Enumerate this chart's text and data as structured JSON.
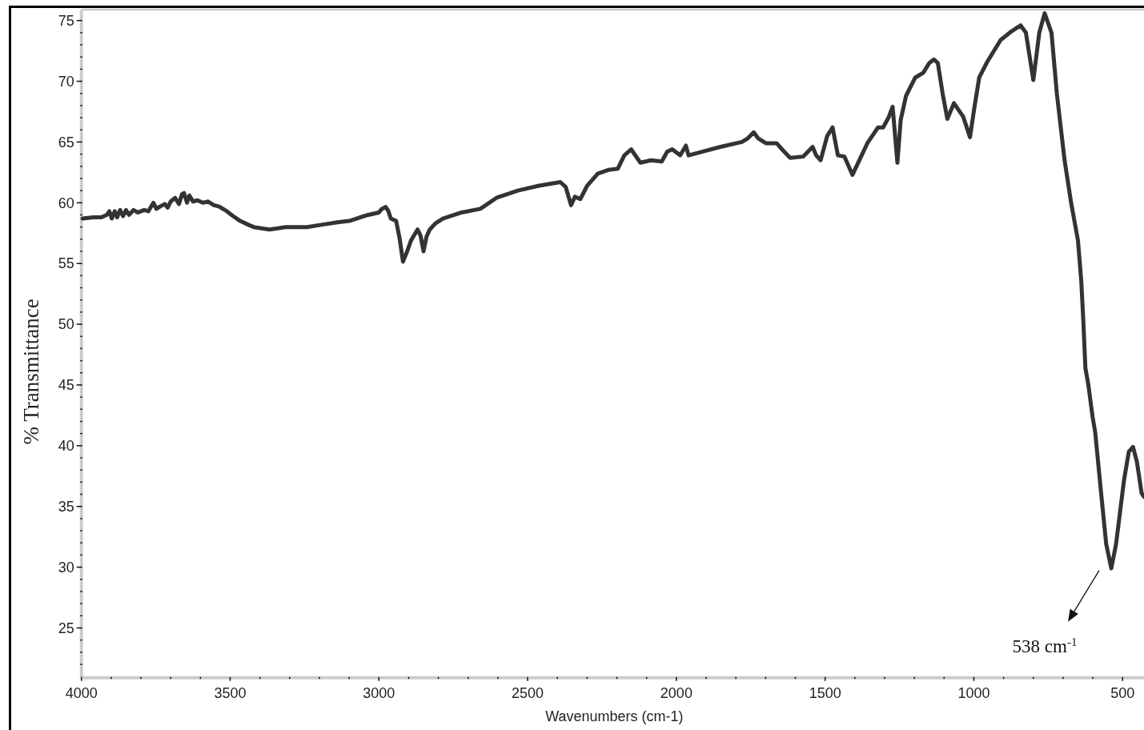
{
  "chart_data": {
    "type": "line",
    "xlabel": "Wavenumbers (cm-1)",
    "ylabel": "% Transmittance",
    "x": [
      3996,
      3960,
      3933,
      3915,
      3906,
      3898,
      3888,
      3880,
      3870,
      3860,
      3850,
      3840,
      3825,
      3810,
      3789,
      3775,
      3758,
      3748,
      3735,
      3720,
      3710,
      3700,
      3685,
      3672,
      3662,
      3655,
      3645,
      3637,
      3625,
      3610,
      3592,
      3574,
      3555,
      3538,
      3511,
      3490,
      3466,
      3440,
      3421,
      3395,
      3368,
      3340,
      3314,
      3280,
      3242,
      3190,
      3135,
      3100,
      3063,
      3036,
      3000,
      2990,
      2977,
      2968,
      2960,
      2942,
      2930,
      2919,
      2905,
      2892,
      2870,
      2860,
      2850,
      2840,
      2829,
      2810,
      2785,
      2722,
      2659,
      2605,
      2533,
      2462,
      2390,
      2372,
      2354,
      2341,
      2323,
      2300,
      2264,
      2229,
      2197,
      2175,
      2152,
      2121,
      2085,
      2049,
      2031,
      2014,
      1987,
      1968,
      1959,
      1914,
      1852,
      1780,
      1760,
      1740,
      1725,
      1699,
      1663,
      1645,
      1618,
      1574,
      1542,
      1530,
      1515,
      1493,
      1475,
      1457,
      1435,
      1408,
      1381,
      1358,
      1322,
      1305,
      1287,
      1273,
      1257,
      1246,
      1228,
      1197,
      1170,
      1150,
      1134,
      1121,
      1105,
      1089,
      1067,
      1036,
      1013,
      999,
      982,
      955,
      910,
      874,
      843,
      825,
      800,
      780,
      762,
      739,
      721,
      695,
      673,
      650,
      639,
      632,
      625,
      615,
      601,
      592,
      571,
      555,
      538,
      522,
      495,
      479,
      465,
      452,
      436,
      428
    ],
    "series": [
      {
        "color": "#333333",
        "values": [
          58.7,
          58.8,
          58.8,
          59.0,
          59.3,
          58.7,
          59.3,
          58.8,
          59.4,
          58.9,
          59.4,
          59.0,
          59.4,
          59.2,
          59.4,
          59.3,
          60.0,
          59.5,
          59.7,
          59.9,
          59.6,
          60.1,
          60.4,
          59.9,
          60.7,
          60.8,
          60.0,
          60.6,
          60.1,
          60.2,
          60.0,
          60.1,
          59.8,
          59.7,
          59.3,
          58.9,
          58.5,
          58.2,
          58.0,
          57.9,
          57.8,
          57.9,
          58.0,
          58.0,
          58.0,
          58.2,
          58.4,
          58.5,
          58.8,
          59.0,
          59.2,
          59.5,
          59.65,
          59.3,
          58.7,
          58.5,
          57.0,
          55.15,
          56.0,
          56.9,
          57.8,
          57.3,
          56.0,
          57.2,
          57.8,
          58.3,
          58.7,
          59.2,
          59.5,
          60.4,
          61.0,
          61.4,
          61.7,
          61.3,
          59.8,
          60.5,
          60.3,
          61.4,
          62.4,
          62.7,
          62.8,
          63.9,
          64.4,
          63.3,
          63.5,
          63.4,
          64.2,
          64.4,
          63.9,
          64.7,
          63.9,
          64.2,
          64.6,
          65.0,
          65.3,
          65.8,
          65.3,
          64.9,
          64.9,
          64.4,
          63.7,
          63.8,
          64.6,
          63.9,
          63.5,
          65.5,
          66.2,
          63.9,
          63.8,
          62.3,
          63.7,
          64.9,
          66.2,
          66.2,
          67.0,
          67.9,
          63.3,
          66.8,
          68.8,
          70.3,
          70.7,
          71.5,
          71.8,
          71.5,
          69.0,
          66.9,
          68.2,
          67.1,
          65.4,
          67.7,
          70.3,
          71.6,
          73.4,
          74.1,
          74.6,
          74.0,
          70.1,
          74.0,
          75.6,
          74.0,
          69.0,
          63.5,
          60.0,
          56.9,
          53.6,
          50.3,
          46.4,
          45.0,
          42.4,
          41.1,
          35.8,
          31.9,
          29.9,
          31.9,
          37.2,
          39.5,
          39.9,
          38.7,
          36.1,
          35.8
        ]
      }
    ],
    "xlim": [
      4000,
      428
    ],
    "ylim": [
      20.9,
      75.9
    ],
    "xticks": [
      4000,
      {
        "value": 3900,
        "label": null
      },
      {
        "value": 3800,
        "label": null
      },
      {
        "value": 3700,
        "label": null
      },
      {
        "value": 3600,
        "label": null
      },
      3500,
      {
        "value": 3400,
        "label": null
      },
      {
        "value": 3300,
        "label": null
      },
      {
        "value": 3200,
        "label": null
      },
      {
        "value": 3100,
        "label": null
      },
      3000,
      {
        "value": 2900,
        "label": null
      },
      {
        "value": 2800,
        "label": null
      },
      {
        "value": 2700,
        "label": null
      },
      {
        "value": 2600,
        "label": null
      },
      2500,
      {
        "value": 2400,
        "label": null
      },
      {
        "value": 2300,
        "label": null
      },
      {
        "value": 2200,
        "label": null
      },
      {
        "value": 2100,
        "label": null
      },
      2000,
      {
        "value": 1900,
        "label": null
      },
      {
        "value": 1800,
        "label": null
      },
      {
        "value": 1700,
        "label": null
      },
      {
        "value": 1600,
        "label": null
      },
      1500,
      {
        "value": 1400,
        "label": null
      },
      {
        "value": 1300,
        "label": null
      },
      {
        "value": 1200,
        "label": null
      },
      {
        "value": 1100,
        "label": null
      },
      1000,
      {
        "value": 900,
        "label": null
      },
      {
        "value": 800,
        "label": null
      },
      {
        "value": 700,
        "label": null
      },
      {
        "value": 600,
        "label": null
      },
      500
    ],
    "yticks": [
      {
        "value": 22,
        "label": null
      },
      {
        "value": 23,
        "label": null
      },
      {
        "value": 24,
        "label": null
      },
      25,
      {
        "value": 26,
        "label": null
      },
      {
        "value": 27,
        "label": null
      },
      {
        "value": 28,
        "label": null
      },
      {
        "value": 29,
        "label": null
      },
      30,
      {
        "value": 31,
        "label": null
      },
      {
        "value": 32,
        "label": null
      },
      {
        "value": 33,
        "label": null
      },
      {
        "value": 34,
        "label": null
      },
      35,
      {
        "value": 36,
        "label": null
      },
      {
        "value": 37,
        "label": null
      },
      {
        "value": 38,
        "label": null
      },
      {
        "value": 39,
        "label": null
      },
      40,
      {
        "value": 41,
        "label": null
      },
      {
        "value": 42,
        "label": null
      },
      {
        "value": 43,
        "label": null
      },
      {
        "value": 44,
        "label": null
      },
      45,
      {
        "value": 46,
        "label": null
      },
      {
        "value": 47,
        "label": null
      },
      {
        "value": 48,
        "label": null
      },
      {
        "value": 49,
        "label": null
      },
      50,
      {
        "value": 51,
        "label": null
      },
      {
        "value": 52,
        "label": null
      },
      {
        "value": 53,
        "label": null
      },
      {
        "value": 54,
        "label": null
      },
      55,
      {
        "value": 56,
        "label": null
      },
      {
        "value": 57,
        "label": null
      },
      {
        "value": 58,
        "label": null
      },
      {
        "value": 59,
        "label": null
      },
      60,
      {
        "value": 61,
        "label": null
      },
      {
        "value": 62,
        "label": null
      },
      {
        "value": 63,
        "label": null
      },
      {
        "value": 64,
        "label": null
      },
      65,
      {
        "value": 66,
        "label": null
      },
      {
        "value": 67,
        "label": null
      },
      {
        "value": 68,
        "label": null
      },
      {
        "value": 69,
        "label": null
      },
      70,
      {
        "value": 71,
        "label": null
      },
      {
        "value": 72,
        "label": null
      },
      {
        "value": 73,
        "label": null
      },
      {
        "value": 74,
        "label": null
      },
      75
    ],
    "line_style": "solid",
    "annotations": [
      "538 cm$^{-1}$"
    ]
  }
}
